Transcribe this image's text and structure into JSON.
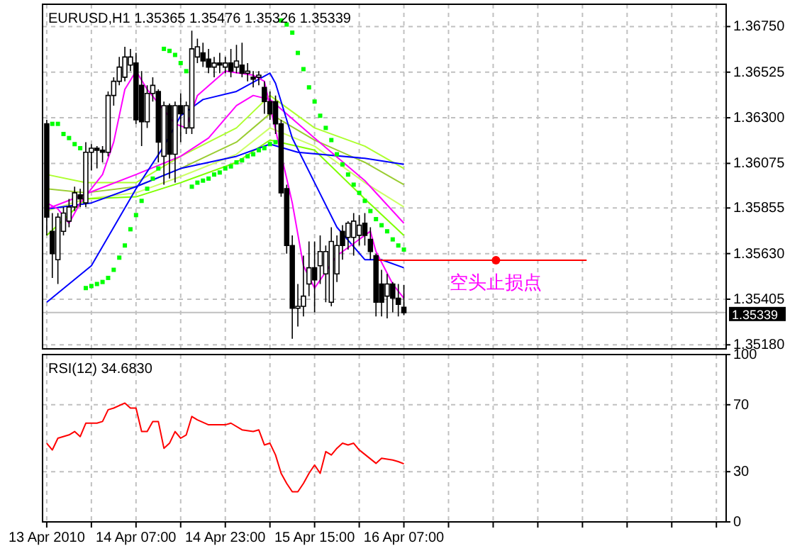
{
  "chart_data": [
    {
      "type": "candlestick",
      "title": "EURUSD,H1 1.35365 1.35476 1.35326 1.35339",
      "x": [
        "2010-04-13T15:00",
        "2010-04-13T16:00",
        "2010-04-13T17:00",
        "2010-04-13T18:00",
        "2010-04-13T19:00",
        "2010-04-13T20:00",
        "2010-04-13T21:00",
        "2010-04-13T22:00",
        "2010-04-13T23:00",
        "2010-04-14T00:00",
        "2010-04-14T01:00",
        "2010-04-14T02:00",
        "2010-04-14T03:00",
        "2010-04-14T04:00",
        "2010-04-14T05:00",
        "2010-04-14T06:00",
        "2010-04-14T07:00",
        "2010-04-14T08:00",
        "2010-04-14T09:00",
        "2010-04-14T10:00",
        "2010-04-14T11:00",
        "2010-04-14T12:00",
        "2010-04-14T13:00",
        "2010-04-14T14:00",
        "2010-04-14T15:00",
        "2010-04-14T16:00",
        "2010-04-14T17:00",
        "2010-04-14T18:00",
        "2010-04-14T19:00",
        "2010-04-14T20:00",
        "2010-04-14T21:00",
        "2010-04-14T22:00",
        "2010-04-14T23:00",
        "2010-04-15T00:00",
        "2010-04-15T01:00",
        "2010-04-15T02:00",
        "2010-04-15T03:00",
        "2010-04-15T04:00",
        "2010-04-15T05:00",
        "2010-04-15T06:00",
        "2010-04-15T07:00",
        "2010-04-15T08:00",
        "2010-04-15T09:00",
        "2010-04-15T10:00",
        "2010-04-15T11:00",
        "2010-04-15T12:00",
        "2010-04-15T13:00",
        "2010-04-15T14:00",
        "2010-04-15T15:00",
        "2010-04-15T16:00",
        "2010-04-15T17:00",
        "2010-04-15T18:00",
        "2010-04-15T19:00",
        "2010-04-15T20:00",
        "2010-04-15T21:00",
        "2010-04-15T22:00",
        "2010-04-15T23:00",
        "2010-04-16T00:00",
        "2010-04-16T01:00",
        "2010-04-16T02:00",
        "2010-04-16T03:00",
        "2010-04-16T04:00",
        "2010-04-16T05:00",
        "2010-04-16T06:00",
        "2010-04-16T07:00"
      ],
      "ohlc": [
        [
          1.3627,
          1.3629,
          1.3572,
          1.3581
        ],
        [
          1.3574,
          1.3583,
          1.3551,
          1.3563
        ],
        [
          1.356,
          1.3583,
          1.3548,
          1.3581
        ],
        [
          1.3574,
          1.3586,
          1.3572,
          1.3583
        ],
        [
          1.3579,
          1.359,
          1.3576,
          1.3586
        ],
        [
          1.3586,
          1.3596,
          1.3584,
          1.3593
        ],
        [
          1.3592,
          1.3595,
          1.3586,
          1.359
        ],
        [
          1.3588,
          1.3618,
          1.3586,
          1.3613
        ],
        [
          1.3613,
          1.3617,
          1.3604,
          1.3615
        ],
        [
          1.3615,
          1.3616,
          1.3605,
          1.3614
        ],
        [
          1.3614,
          1.3616,
          1.3608,
          1.3613
        ],
        [
          1.3613,
          1.3643,
          1.3611,
          1.3641
        ],
        [
          1.3641,
          1.365,
          1.3636,
          1.3648
        ],
        [
          1.3648,
          1.366,
          1.3646,
          1.3655
        ],
        [
          1.365,
          1.3665,
          1.3648,
          1.366
        ],
        [
          1.3656,
          1.3664,
          1.3653,
          1.366
        ],
        [
          1.3657,
          1.3662,
          1.3627,
          1.3629
        ],
        [
          1.3646,
          1.3653,
          1.3616,
          1.3628
        ],
        [
          1.3628,
          1.3646,
          1.3625,
          1.3642
        ],
        [
          1.3642,
          1.365,
          1.3638,
          1.3646
        ],
        [
          1.3643,
          1.3644,
          1.3608,
          1.3618
        ],
        [
          1.3611,
          1.3638,
          1.3597,
          1.3636
        ],
        [
          1.3636,
          1.3637,
          1.36,
          1.3612
        ],
        [
          1.3612,
          1.3638,
          1.3598,
          1.3636
        ],
        [
          1.3636,
          1.3642,
          1.3618,
          1.3632
        ],
        [
          1.3625,
          1.3638,
          1.3622,
          1.3636
        ],
        [
          1.3625,
          1.3673,
          1.3622,
          1.3664
        ],
        [
          1.366,
          1.3669,
          1.3657,
          1.3665
        ],
        [
          1.3662,
          1.3667,
          1.3655,
          1.3658
        ],
        [
          1.3659,
          1.3664,
          1.3652,
          1.3655
        ],
        [
          1.3655,
          1.366,
          1.365,
          1.3657
        ],
        [
          1.3657,
          1.3662,
          1.3652,
          1.3656
        ],
        [
          1.3655,
          1.366,
          1.3652,
          1.3657
        ],
        [
          1.3657,
          1.3664,
          1.365,
          1.3653
        ],
        [
          1.3655,
          1.3666,
          1.3652,
          1.3658
        ],
        [
          1.3656,
          1.3667,
          1.365,
          1.3652
        ],
        [
          1.3652,
          1.3657,
          1.3648,
          1.3653
        ],
        [
          1.365,
          1.3653,
          1.3645,
          1.3649
        ],
        [
          1.365,
          1.3653,
          1.3646,
          1.3651
        ],
        [
          1.3645,
          1.3648,
          1.3632,
          1.3638
        ],
        [
          1.3638,
          1.3643,
          1.3629,
          1.3632
        ],
        [
          1.3638,
          1.3641,
          1.3622,
          1.3627
        ],
        [
          1.3627,
          1.3629,
          1.3591,
          1.3593
        ],
        [
          1.3595,
          1.3597,
          1.3563,
          1.3567
        ],
        [
          1.3567,
          1.3572,
          1.3521,
          1.3536
        ],
        [
          1.3536,
          1.3548,
          1.3527,
          1.3537
        ],
        [
          1.3537,
          1.3562,
          1.3532,
          1.3542
        ],
        [
          1.3548,
          1.3569,
          1.3542,
          1.3556
        ],
        [
          1.3556,
          1.3569,
          1.3534,
          1.355
        ],
        [
          1.3557,
          1.3572,
          1.3548,
          1.3564
        ],
        [
          1.3553,
          1.3567,
          1.3539,
          1.3564
        ],
        [
          1.3539,
          1.3576,
          1.3537,
          1.3569
        ],
        [
          1.3553,
          1.3572,
          1.3549,
          1.3567
        ],
        [
          1.3574,
          1.3577,
          1.356,
          1.3567
        ],
        [
          1.3571,
          1.3579,
          1.3565,
          1.3578
        ],
        [
          1.3571,
          1.3583,
          1.3562,
          1.3579
        ],
        [
          1.3572,
          1.3582,
          1.3567,
          1.3577
        ],
        [
          1.3578,
          1.3583,
          1.3567,
          1.3572
        ],
        [
          1.357,
          1.3576,
          1.356,
          1.3564
        ],
        [
          1.3562,
          1.3563,
          1.3532,
          1.3539
        ],
        [
          1.3548,
          1.3555,
          1.3532,
          1.3539
        ],
        [
          1.3542,
          1.3553,
          1.3531,
          1.3548
        ],
        [
          1.3548,
          1.3549,
          1.3534,
          1.3541
        ],
        [
          1.3541,
          1.3548,
          1.3532,
          1.3538
        ],
        [
          1.35365,
          1.35476,
          1.35326,
          1.35339
        ]
      ],
      "series": [
        {
          "type": "line",
          "color": "#adff2f",
          "x": [
            "2010-04-13T15:00",
            "2010-04-13T22:00",
            "2010-04-14T07:00",
            "2010-04-14T15:00",
            "2010-04-15T01:00",
            "2010-04-15T07:00",
            "2010-04-15T15:00",
            "2010-04-16T00:00",
            "2010-04-16T07:00"
          ],
          "values": [
            1.3602,
            1.3598,
            1.3598,
            1.3611,
            1.3625,
            1.3641,
            1.3625,
            1.3616,
            1.3605
          ]
        },
        {
          "type": "line",
          "color": "#9acd32",
          "x": [
            "2010-04-13T15:00",
            "2010-04-13T22:00",
            "2010-04-14T07:00",
            "2010-04-14T15:00",
            "2010-04-15T01:00",
            "2010-04-15T07:00",
            "2010-04-15T15:00",
            "2010-04-16T00:00",
            "2010-04-16T07:00"
          ],
          "values": [
            1.3595,
            1.3593,
            1.3596,
            1.3605,
            1.3618,
            1.3632,
            1.3619,
            1.3608,
            1.3597
          ]
        },
        {
          "type": "line",
          "color": "#ccff66",
          "x": [
            "2010-04-13T15:00",
            "2010-04-13T22:00",
            "2010-04-14T07:00",
            "2010-04-14T15:00",
            "2010-04-15T01:00",
            "2010-04-15T07:00",
            "2010-04-15T15:00",
            "2010-04-16T00:00",
            "2010-04-16T07:00"
          ],
          "values": [
            1.3584,
            1.359,
            1.3593,
            1.3601,
            1.3612,
            1.3625,
            1.3616,
            1.3598,
            1.3586
          ]
        },
        {
          "type": "line",
          "color": "#7fff00",
          "x": [
            "2010-04-13T15:00",
            "2010-04-13T22:00",
            "2010-04-14T07:00",
            "2010-04-14T15:00",
            "2010-04-15T01:00",
            "2010-04-15T07:00",
            "2010-04-15T15:00",
            "2010-04-16T00:00",
            "2010-04-16T07:00"
          ],
          "values": [
            1.3572,
            1.359,
            1.3591,
            1.3598,
            1.3608,
            1.3619,
            1.3614,
            1.359,
            1.3572
          ]
        },
        {
          "type": "line",
          "color": "#0000ff",
          "x": [
            "2010-04-13T15:00",
            "2010-04-13T23:00",
            "2010-04-14T07:00",
            "2010-04-14T15:00",
            "2010-04-15T01:00",
            "2010-04-15T07:00",
            "2010-04-15T12:00",
            "2010-04-16T00:00",
            "2010-04-16T07:00"
          ],
          "values": [
            1.3585,
            1.3588,
            1.3596,
            1.3605,
            1.3611,
            1.3617,
            1.3613,
            1.361,
            1.3607
          ]
        },
        {
          "type": "line",
          "color": "#ff00ff",
          "x": [
            "2010-04-13T15:00",
            "2010-04-14T07:00",
            "2010-04-14T15:00",
            "2010-04-14T20:00",
            "2010-04-15T01:00",
            "2010-04-15T04:00",
            "2010-04-15T07:00",
            "2010-04-15T15:00",
            "2010-04-16T00:00",
            "2010-04-16T07:00"
          ],
          "values": [
            1.3585,
            1.3602,
            1.3611,
            1.362,
            1.3636,
            1.3641,
            1.3639,
            1.362,
            1.3599,
            1.3578
          ]
        },
        {
          "type": "line",
          "color": "#0000ff",
          "x": [
            "2010-04-13T15:00",
            "2010-04-13T23:00",
            "2010-04-14T07:00",
            "2010-04-14T12:00",
            "2010-04-14T15:00",
            "2010-04-14T19:00",
            "2010-04-15T01:00",
            "2010-04-15T07:00",
            "2010-04-15T08:00",
            "2010-04-15T11:00",
            "2010-04-15T15:00",
            "2010-04-15T19:00",
            "2010-04-16T00:00",
            "2010-04-16T03:00",
            "2010-04-16T07:00"
          ],
          "values": [
            1.3539,
            1.3557,
            1.3595,
            1.3616,
            1.3631,
            1.3639,
            1.3643,
            1.3652,
            1.3647,
            1.362,
            1.3598,
            1.3576,
            1.356,
            1.356,
            1.3556
          ]
        },
        {
          "type": "line",
          "color": "#ff00ff",
          "x": [
            "2010-04-13T15:00",
            "2010-04-13T17:00",
            "2010-04-13T19:00",
            "2010-04-13T21:00",
            "2010-04-14T01:00",
            "2010-04-14T03:00",
            "2010-04-14T05:00",
            "2010-04-14T07:00",
            "2010-04-14T09:00",
            "2010-04-14T14:00",
            "2010-04-14T16:00",
            "2010-04-14T18:00",
            "2010-04-14T23:00",
            "2010-04-15T04:00",
            "2010-04-15T06:00",
            "2010-04-15T11:00",
            "2010-04-15T13:00",
            "2010-04-15T15:00",
            "2010-04-15T19:00",
            "2010-04-16T01:00",
            "2010-04-16T02:00",
            "2010-04-16T05:00",
            "2010-04-16T07:00"
          ],
          "values": [
            1.3588,
            1.3585,
            1.3578,
            1.3588,
            1.3602,
            1.3618,
            1.3644,
            1.3653,
            1.3644,
            1.3627,
            1.3625,
            1.3641,
            1.3653,
            1.3651,
            1.3648,
            1.3588,
            1.3557,
            1.3546,
            1.3562,
            1.3574,
            1.3564,
            1.3548,
            1.3541
          ]
        },
        {
          "type": "scatter",
          "color": "#00ff00",
          "marker": "square",
          "values": [
            null,
            1.3627,
            1.3627,
            1.3622,
            1.362,
            1.3617,
            1.3615,
            1.3546,
            1.3547,
            1.3548,
            1.3549,
            1.3551,
            1.3555,
            1.3561,
            1.3567,
            1.3575,
            1.3582,
            1.3589,
            1.3595,
            1.36,
            1.3605,
            1.3664,
            1.3663,
            1.3661,
            1.3657,
            1.3653,
            1.3596,
            1.3598,
            1.3599,
            1.36,
            1.3602,
            1.3603,
            1.3605,
            1.3606,
            1.3608,
            1.3609,
            1.3611,
            1.3612,
            1.3614,
            1.3615,
            1.3617,
            1.3618,
            1.3678,
            1.3676,
            1.3672,
            1.3662,
            1.3654,
            1.3645,
            1.3638,
            1.3631,
            1.3625,
            1.3619,
            1.3612,
            1.3607,
            1.3602,
            1.3597,
            1.3593,
            1.3589,
            1.3584,
            1.358,
            1.3577,
            1.3574,
            1.357,
            1.3567,
            1.3565
          ]
        },
        {
          "type": "line",
          "color": "#ff0000",
          "x": [
            "2010-04-16T02:15",
            "2010-04-17T15:45"
          ],
          "values": [
            1.35597,
            1.35597
          ]
        },
        {
          "type": "scatter",
          "color": "#ff0000",
          "marker": "circle",
          "x": [
            "2010-04-16T23:30"
          ],
          "values": [
            1.35597
          ]
        }
      ],
      "annotations": [
        {
          "text": "空头止损点",
          "x": "2010-04-16T23:30",
          "y": 1.35597
        }
      ],
      "ref_lines": [
        {
          "axis": "y",
          "value": 1.35339,
          "label": "1.35339",
          "color": "#c0c0c0"
        }
      ],
      "xlim": [
        "2010-04-13T14:15",
        "2010-04-18T16:45"
      ],
      "xticks": [
        {
          "value": "2010-04-13T15:00",
          "label": null
        },
        {
          "value": "2010-04-13T23:00",
          "label": null
        },
        {
          "value": "2010-04-14T07:00",
          "label": null
        },
        {
          "value": "2010-04-14T15:00",
          "label": null
        },
        {
          "value": "2010-04-14T23:00",
          "label": null
        },
        {
          "value": "2010-04-15T07:00",
          "label": null
        },
        {
          "value": "2010-04-15T15:00",
          "label": null
        },
        {
          "value": "2010-04-15T23:00",
          "label": null
        },
        {
          "value": "2010-04-16T07:00",
          "label": null
        },
        {
          "value": "2010-04-16T15:00",
          "label": null
        },
        {
          "value": "2010-04-16T23:00",
          "label": null
        },
        {
          "value": "2010-04-17T07:00",
          "label": null
        },
        {
          "value": "2010-04-17T15:00",
          "label": null
        },
        {
          "value": "2010-04-17T23:00",
          "label": null
        },
        {
          "value": "2010-04-18T07:00",
          "label": null
        },
        {
          "value": "2010-04-18T15:00",
          "label": null
        }
      ],
      "ylim": [
        1.3516,
        1.3686
      ],
      "yticks": [
        {
          "value": 1.3675,
          "label": "1.36750"
        },
        {
          "value": 1.36525,
          "label": "1.36525"
        },
        {
          "value": 1.363,
          "label": "1.36300"
        },
        {
          "value": 1.36075,
          "label": "1.36075"
        },
        {
          "value": 1.35855,
          "label": "1.35855"
        },
        {
          "value": 1.3563,
          "label": "1.35630"
        },
        {
          "value": 1.35405,
          "label": "1.35405"
        },
        {
          "value": 1.3518,
          "label": "1.35180"
        }
      ],
      "grid": true,
      "tick_labels": "y"
    },
    {
      "type": "line",
      "title": "RSI(12) 34.6830",
      "x": [
        "2010-04-13T15:00",
        "2010-04-13T16:00",
        "2010-04-13T17:00",
        "2010-04-13T19:00",
        "2010-04-13T20:00",
        "2010-04-13T21:00",
        "2010-04-13T22:00",
        "2010-04-14T00:00",
        "2010-04-14T01:00",
        "2010-04-14T02:00",
        "2010-04-14T03:00",
        "2010-04-14T05:00",
        "2010-04-14T06:00",
        "2010-04-14T07:00",
        "2010-04-14T08:00",
        "2010-04-14T09:00",
        "2010-04-14T10:00",
        "2010-04-14T11:00",
        "2010-04-14T12:00",
        "2010-04-14T13:00",
        "2010-04-14T14:00",
        "2010-04-14T15:00",
        "2010-04-14T16:00",
        "2010-04-14T17:00",
        "2010-04-14T18:00",
        "2010-04-14T20:00",
        "2010-04-14T23:00",
        "2010-04-15T00:00",
        "2010-04-15T02:00",
        "2010-04-15T04:00",
        "2010-04-15T05:00",
        "2010-04-15T06:00",
        "2010-04-15T07:00",
        "2010-04-15T08:00",
        "2010-04-15T09:00",
        "2010-04-15T10:00",
        "2010-04-15T11:00",
        "2010-04-15T12:00",
        "2010-04-15T13:00",
        "2010-04-15T14:00",
        "2010-04-15T15:00",
        "2010-04-15T16:00",
        "2010-04-15T17:00",
        "2010-04-15T18:00",
        "2010-04-15T19:00",
        "2010-04-15T20:00",
        "2010-04-15T21:00",
        "2010-04-15T22:00",
        "2010-04-15T23:00",
        "2010-04-16T02:00",
        "2010-04-16T03:00",
        "2010-04-16T05:00",
        "2010-04-16T06:00",
        "2010-04-16T07:00"
      ],
      "series": [
        {
          "color": "#ff0000",
          "values": [
            47,
            43,
            50,
            52,
            54,
            51,
            59,
            59,
            60,
            67,
            68,
            71,
            68,
            68,
            54,
            54,
            60,
            60,
            44,
            47,
            54,
            50,
            52,
            63,
            61,
            58,
            58,
            59,
            55,
            54,
            55,
            46,
            47,
            40,
            29,
            23,
            18,
            18,
            23,
            29,
            34,
            29,
            42,
            40,
            44,
            47,
            46,
            47,
            43,
            35,
            38,
            37,
            36,
            34.683
          ]
        }
      ],
      "xlim": [
        "2010-04-13T14:15",
        "2010-04-18T16:45"
      ],
      "xticks": [
        {
          "value": "2010-04-13T15:00",
          "label": "13 Apr 2010"
        },
        {
          "value": "2010-04-13T23:00",
          "label": null
        },
        {
          "value": "2010-04-14T07:00",
          "label": "14 Apr 07:00"
        },
        {
          "value": "2010-04-14T15:00",
          "label": null
        },
        {
          "value": "2010-04-14T23:00",
          "label": "14 Apr 23:00"
        },
        {
          "value": "2010-04-15T07:00",
          "label": null
        },
        {
          "value": "2010-04-15T15:00",
          "label": "15 Apr 15:00"
        },
        {
          "value": "2010-04-15T23:00",
          "label": null
        },
        {
          "value": "2010-04-16T07:00",
          "label": "16 Apr 07:00"
        },
        {
          "value": "2010-04-16T15:00",
          "label": null
        },
        {
          "value": "2010-04-16T23:00",
          "label": null
        },
        {
          "value": "2010-04-17T07:00",
          "label": null
        },
        {
          "value": "2010-04-17T15:00",
          "label": null
        },
        {
          "value": "2010-04-17T23:00",
          "label": null
        },
        {
          "value": "2010-04-18T07:00",
          "label": null
        },
        {
          "value": "2010-04-18T15:00",
          "label": null
        }
      ],
      "ylim": [
        0,
        100
      ],
      "yticks": [
        0,
        30,
        70,
        100
      ],
      "grid": true
    }
  ]
}
